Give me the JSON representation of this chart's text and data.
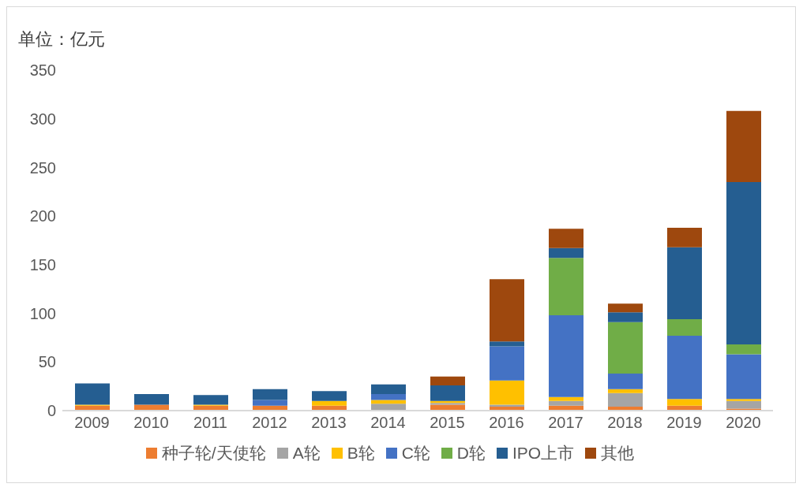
{
  "chart_data": {
    "type": "bar",
    "stacked": true,
    "ylabel": "单位：亿元",
    "categories": [
      "2009",
      "2010",
      "2011",
      "2012",
      "2013",
      "2014",
      "2015",
      "2016",
      "2017",
      "2018",
      "2019",
      "2020"
    ],
    "series": [
      {
        "name": "种子轮/天使轮",
        "color": "#ed7d31",
        "values": [
          5,
          6,
          5,
          5,
          5,
          null,
          6,
          4,
          5,
          4,
          5,
          2
        ]
      },
      {
        "name": "A轮",
        "color": "#a5a5a5",
        "values": [
          0,
          null,
          0,
          null,
          0,
          7,
          2,
          2,
          5,
          14,
          null,
          8
        ]
      },
      {
        "name": "B轮",
        "color": "#ffc000",
        "values": [
          1,
          0,
          1,
          0,
          5,
          4,
          2,
          25,
          4,
          4,
          7,
          2
        ]
      },
      {
        "name": "C轮",
        "color": "#4472c4",
        "values": [
          0,
          0,
          0,
          6,
          0,
          6,
          0,
          35,
          84,
          16,
          65,
          46
        ]
      },
      {
        "name": "D轮",
        "color": "#70ad47",
        "values": [
          0,
          0,
          0,
          0,
          0,
          0,
          0,
          0,
          59,
          53,
          17,
          10
        ]
      },
      {
        "name": "IPO上市",
        "color": "#255e91",
        "values": [
          22,
          11,
          10,
          11,
          10,
          10,
          16,
          5,
          10,
          10,
          74,
          167
        ]
      },
      {
        "name": "其他",
        "color": "#9e480e",
        "values": [
          0,
          0,
          0,
          0,
          0,
          0,
          9,
          64,
          20,
          9,
          20,
          73
        ]
      }
    ],
    "ylim": [
      0,
      350
    ],
    "yticks": [
      0,
      50,
      100,
      150,
      200,
      250,
      300,
      350
    ],
    "grid": false,
    "legend": "bottom"
  }
}
